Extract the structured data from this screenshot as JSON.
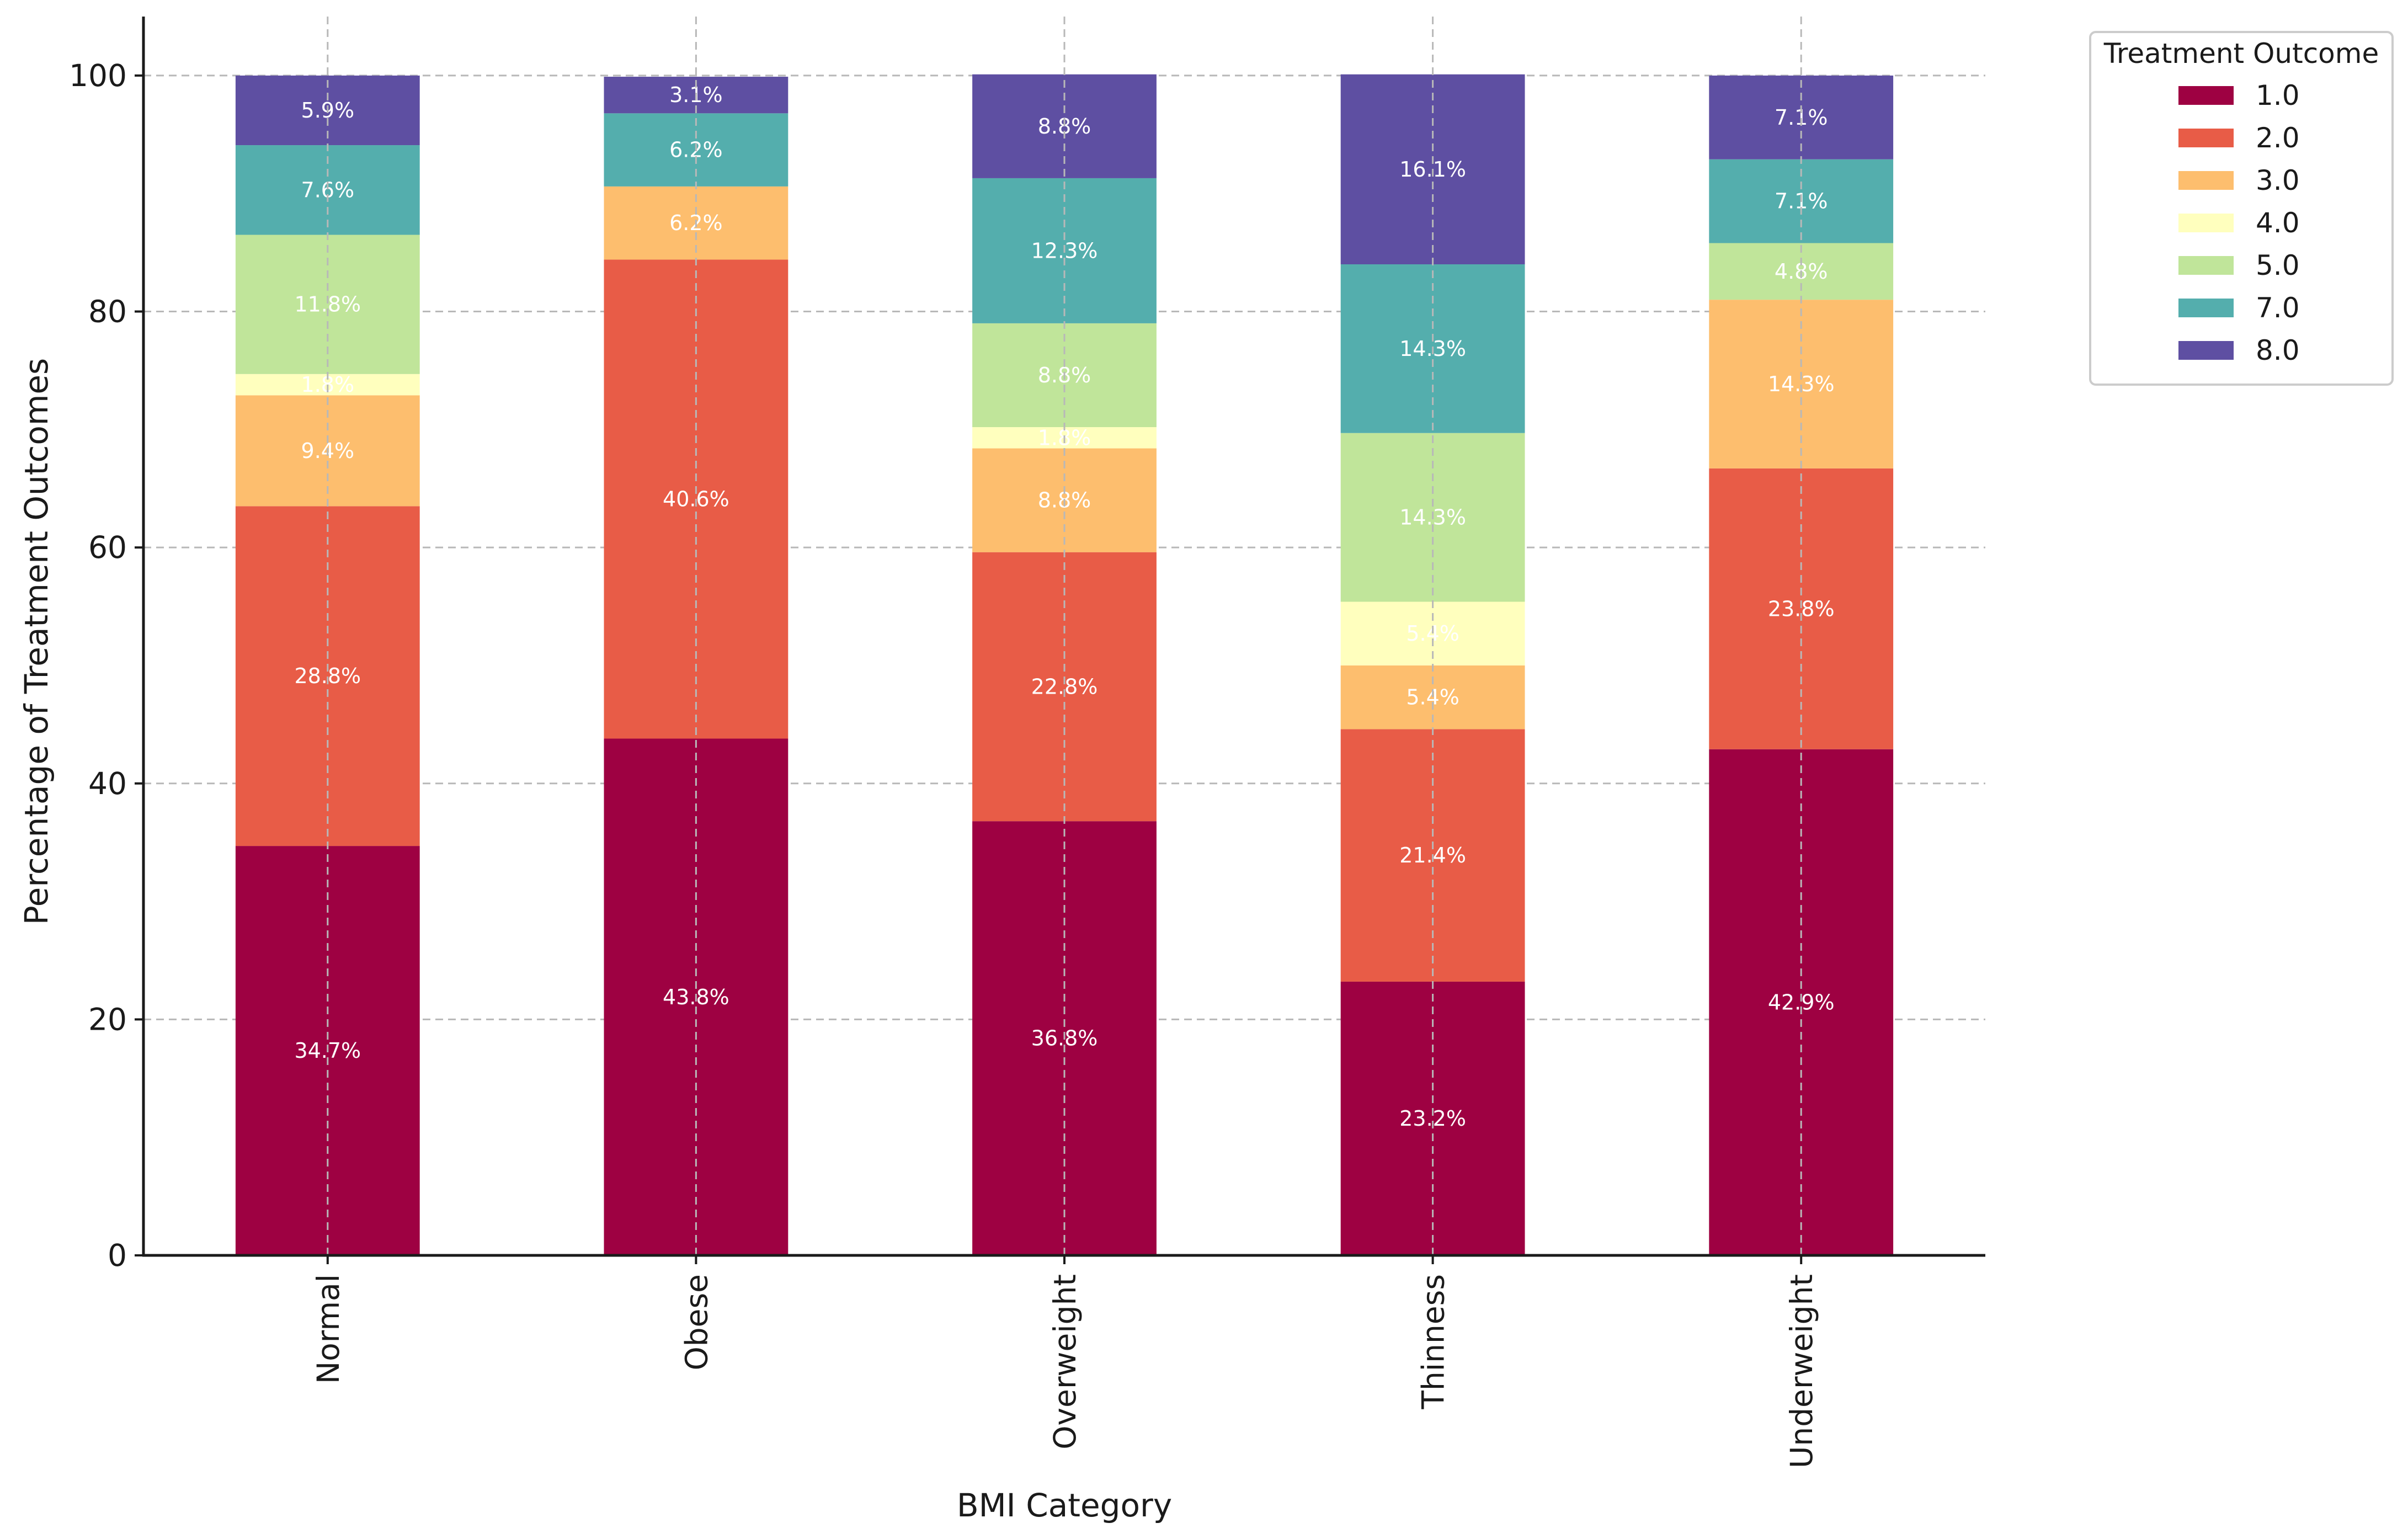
{
  "chart_data": {
    "type": "bar",
    "stacked": true,
    "title": "",
    "xlabel": "BMI Category",
    "ylabel": "Percentage of Treatment Outcomes",
    "ylim": [
      0,
      105
    ],
    "yticks": [
      0,
      20,
      40,
      60,
      80,
      100
    ],
    "grid": true,
    "categories": [
      "Normal",
      "Obese",
      "Overweight",
      "Thinness",
      "Underweight"
    ],
    "legend": {
      "title": "Treatment Outcome",
      "placement": "outside-top-right"
    },
    "series": [
      {
        "name": "1.0",
        "color": "#9e0142",
        "values": [
          34.7,
          43.8,
          36.8,
          23.2,
          42.9
        ],
        "labels": [
          "34.7%",
          "43.8%",
          "36.8%",
          "23.2%",
          "42.9%"
        ]
      },
      {
        "name": "2.0",
        "color": "#e85c47",
        "values": [
          28.8,
          40.6,
          22.8,
          21.4,
          23.8
        ],
        "labels": [
          "28.8%",
          "40.6%",
          "22.8%",
          "21.4%",
          "23.8%"
        ]
      },
      {
        "name": "3.0",
        "color": "#fdbe6e",
        "values": [
          9.4,
          6.2,
          8.8,
          5.4,
          14.3
        ],
        "labels": [
          "9.4%",
          "6.2%",
          "8.8%",
          "5.4%",
          "14.3%"
        ]
      },
      {
        "name": "4.0",
        "color": "#ffffbe",
        "values": [
          1.8,
          0,
          1.8,
          5.4,
          0
        ],
        "labels": [
          "1.8%",
          "",
          "1.8%",
          "5.4%",
          ""
        ]
      },
      {
        "name": "5.0",
        "color": "#c0e59a",
        "values": [
          11.8,
          0,
          8.8,
          14.3,
          4.8
        ],
        "labels": [
          "11.8%",
          "",
          "8.8%",
          "14.3%",
          "4.8%"
        ]
      },
      {
        "name": "7.0",
        "color": "#54aead",
        "values": [
          7.6,
          6.2,
          12.3,
          14.3,
          7.1
        ],
        "labels": [
          "7.6%",
          "6.2%",
          "12.3%",
          "14.3%",
          "7.1%"
        ]
      },
      {
        "name": "8.0",
        "color": "#5e4fa2",
        "values": [
          5.9,
          3.1,
          8.8,
          16.1,
          7.1
        ],
        "labels": [
          "5.9%",
          "3.1%",
          "8.8%",
          "16.1%",
          "7.1%"
        ]
      }
    ]
  }
}
